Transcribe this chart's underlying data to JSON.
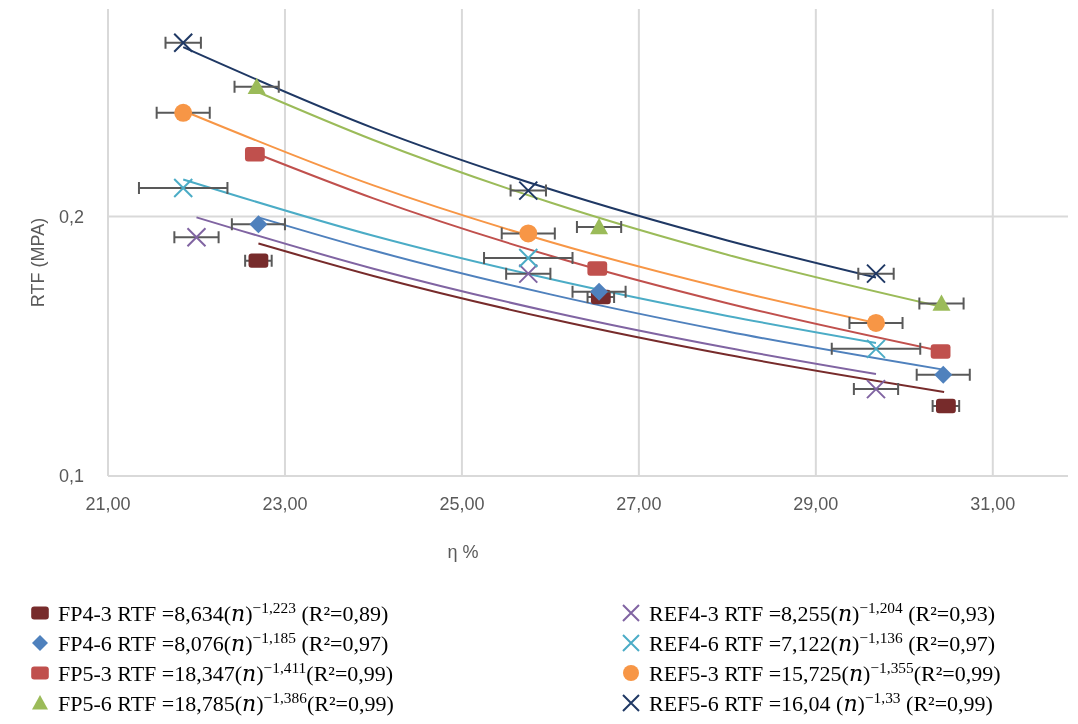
{
  "chart_data": {
    "type": "scatter",
    "xlabel": "η %",
    "ylabel": "RTF  (MPA)",
    "xlim": [
      21,
      31.85
    ],
    "ylim": [
      0.1,
      0.28
    ],
    "xticks": [
      {
        "value": 21,
        "label": "21,00"
      },
      {
        "value": 23,
        "label": "23,00"
      },
      {
        "value": 25,
        "label": "25,00"
      },
      {
        "value": 27,
        "label": "27,00"
      },
      {
        "value": 29,
        "label": "29,00"
      },
      {
        "value": 31,
        "label": "31,00"
      }
    ],
    "yticks": [
      {
        "value": 0.1,
        "label": "0,1"
      },
      {
        "value": 0.2,
        "label": "0,2"
      }
    ],
    "grid": true,
    "legend": "bottom",
    "series": [
      {
        "name": "FP4-3 RTF =8,634(𝑛)$^{−1,223}$  (R²=0,89)",
        "color": "#772b2b",
        "marker": "square",
        "x": [
          22.7,
          26.57,
          30.47
        ],
        "values": [
          0.183,
          0.169,
          0.127
        ],
        "xerrors": [
          0.15,
          0.15,
          0.15
        ]
      },
      {
        "name": "FP4-6 RTF =8,076(𝑛)$^{−1,185}$  (R²=0,97)",
        "color": "#4f81bd",
        "marker": "diamond",
        "x": [
          22.7,
          26.55,
          30.44
        ],
        "values": [
          0.197,
          0.171,
          0.139
        ],
        "xerrors": [
          0.3,
          0.3,
          0.3
        ]
      },
      {
        "name": "FP5-3 RTF =18,347(𝑛)$^{−1,411}$(R²=0,99)",
        "color": "#c0504d",
        "marker": "square",
        "x": [
          22.66,
          26.53,
          30.41
        ],
        "values": [
          0.224,
          0.18,
          0.148
        ]
      },
      {
        "name": "FP5-6 RTF =18,785(𝑛)$^{−1,386}$(R²=0,99)",
        "color": "#9bbb59",
        "marker": "triangle",
        "x": [
          22.68,
          26.55,
          30.42
        ],
        "values": [
          0.25,
          0.196,
          0.1665
        ],
        "xerrors": [
          0.25,
          0.25,
          0.25
        ]
      },
      {
        "name": "REF4-3 RTF =8,255(𝑛)$^{−1,204}$  (R²=0,93)",
        "color": "#8064a2",
        "marker": "cross",
        "x": [
          22.0,
          25.75,
          29.68
        ],
        "values": [
          0.192,
          0.178,
          0.1335
        ],
        "xerrors": [
          0.25,
          0.25,
          0.25
        ]
      },
      {
        "name": "REF4-6 RTF =7,122(𝑛)$^{−1,136}$  (R²=0,97)",
        "color": "#4bacc6",
        "marker": "cross",
        "x": [
          21.85,
          25.75,
          29.68
        ],
        "values": [
          0.211,
          0.184,
          0.149
        ],
        "xerrors": [
          0.5,
          0.5,
          0.5
        ]
      },
      {
        "name": "REF5-3 RTF =15,725(𝑛)$^{−1,355}$(R²=0,99)",
        "color": "#f79646",
        "marker": "circle",
        "x": [
          21.85,
          25.75,
          29.68
        ],
        "values": [
          0.24,
          0.1935,
          0.159
        ],
        "xerrors": [
          0.3,
          0.3,
          0.3
        ]
      },
      {
        "name": "REF5-6 RTF =16,04 (𝑛)$^{−1,33}$  (R²=0,99)",
        "color": "#1f3864",
        "marker": "cross",
        "x": [
          21.85,
          25.75,
          29.68
        ],
        "values": [
          0.267,
          0.21,
          0.178
        ],
        "xerrors": [
          0.2,
          0.2,
          0.2
        ]
      },
      {
        "type": "line",
        "color": "#772b2b",
        "x": [
          22.7,
          24,
          26,
          28,
          30.45
        ],
        "values": [
          0.1896,
          0.1771,
          0.1606,
          0.1467,
          0.1324
        ]
      },
      {
        "type": "line",
        "color": "#4f81bd",
        "x": [
          22.7,
          24,
          26,
          28,
          30.44
        ],
        "values": [
          0.1997,
          0.1869,
          0.17,
          0.1557,
          0.141
        ]
      },
      {
        "type": "line",
        "color": "#c0504d",
        "x": [
          22.66,
          24,
          26,
          28,
          30.41
        ],
        "values": [
          0.2245,
          0.207,
          0.1849,
          0.1666,
          0.1482
        ]
      },
      {
        "type": "line",
        "color": "#9bbb59",
        "x": [
          22.68,
          24,
          26,
          28,
          30.42
        ],
        "values": [
          0.2482,
          0.2295,
          0.2054,
          0.1853,
          0.1652
        ]
      },
      {
        "type": "line",
        "color": "#8064a2",
        "x": [
          22.0,
          24,
          26,
          28,
          29.68
        ],
        "values": [
          0.1997,
          0.1799,
          0.1633,
          0.1494,
          0.1393
        ]
      },
      {
        "type": "line",
        "color": "#4bacc6",
        "x": [
          21.85,
          24,
          26,
          28,
          29.68
        ],
        "values": [
          0.2143,
          0.1926,
          0.1759,
          0.1617,
          0.1513
        ]
      },
      {
        "type": "line",
        "color": "#f79646",
        "x": [
          21.85,
          24,
          26,
          28,
          29.68
        ],
        "values": [
          0.2408,
          0.212,
          0.1902,
          0.1721,
          0.159
        ]
      },
      {
        "type": "line",
        "color": "#1f3864",
        "x": [
          21.85,
          24,
          26,
          28,
          29.68
        ],
        "values": [
          0.2653,
          0.2341,
          0.2105,
          0.1908,
          0.1765
        ]
      }
    ]
  }
}
